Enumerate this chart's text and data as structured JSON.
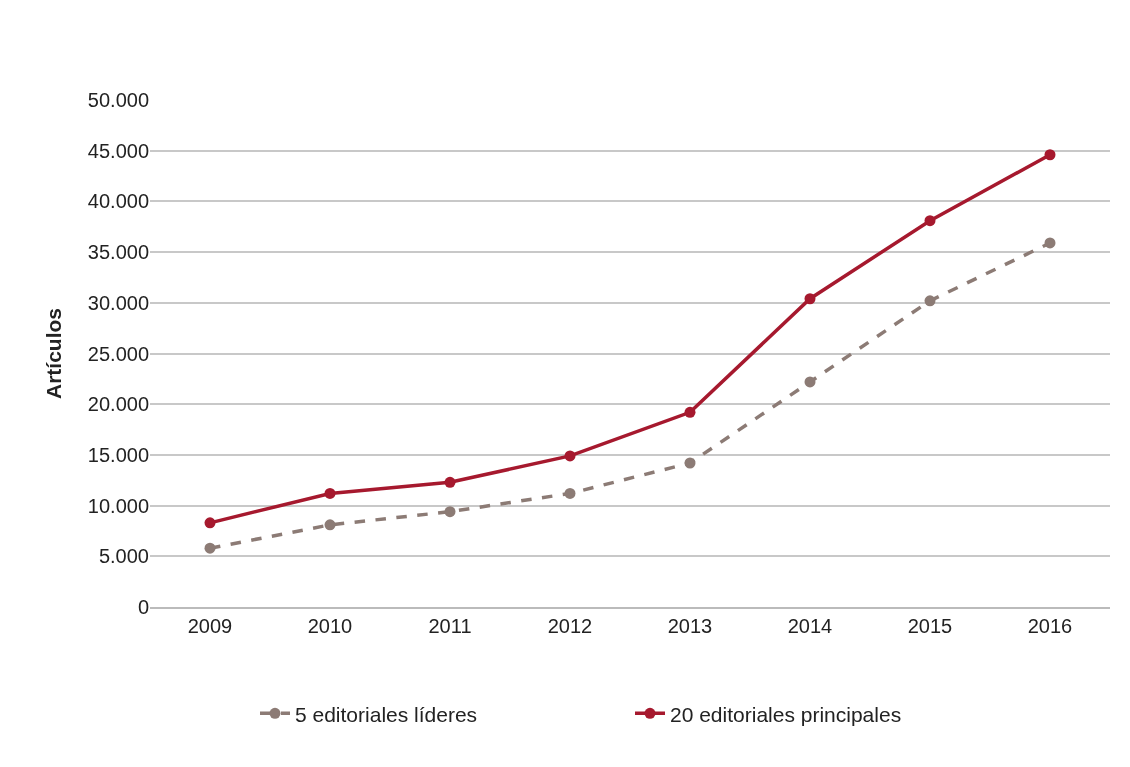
{
  "chart_data": {
    "type": "line",
    "ylabel": "Artículos",
    "categories": [
      "2009",
      "2010",
      "2011",
      "2012",
      "2013",
      "2014",
      "2015",
      "2016"
    ],
    "series": [
      {
        "name": "5 editoriales líderes",
        "color": "#8c7b75",
        "line_style": "dashed",
        "values": [
          5800,
          8100,
          9400,
          11200,
          14200,
          22200,
          30200,
          35900
        ]
      },
      {
        "name": "20 editoriales principales",
        "color": "#a6192e",
        "line_style": "solid",
        "values": [
          8300,
          11200,
          12300,
          14900,
          19200,
          30400,
          38100,
          44600
        ]
      }
    ],
    "ylim": [
      0,
      50000
    ],
    "yticks": [
      0,
      {
        "value": 5000,
        "label": "5.000"
      },
      {
        "value": 10000,
        "label": "10.000"
      },
      {
        "value": 15000,
        "label": "15.000"
      },
      {
        "value": 20000,
        "label": "20.000"
      },
      {
        "value": 25000,
        "label": "25.000"
      },
      {
        "value": 30000,
        "label": "30.000"
      },
      {
        "value": 35000,
        "label": "35.000"
      },
      {
        "value": 40000,
        "label": "40.000"
      },
      {
        "value": 45000,
        "label": "45.000"
      },
      {
        "value": 50000,
        "label": "50.000"
      }
    ],
    "grid": "y",
    "legend": "bottom",
    "marker": "circle"
  }
}
